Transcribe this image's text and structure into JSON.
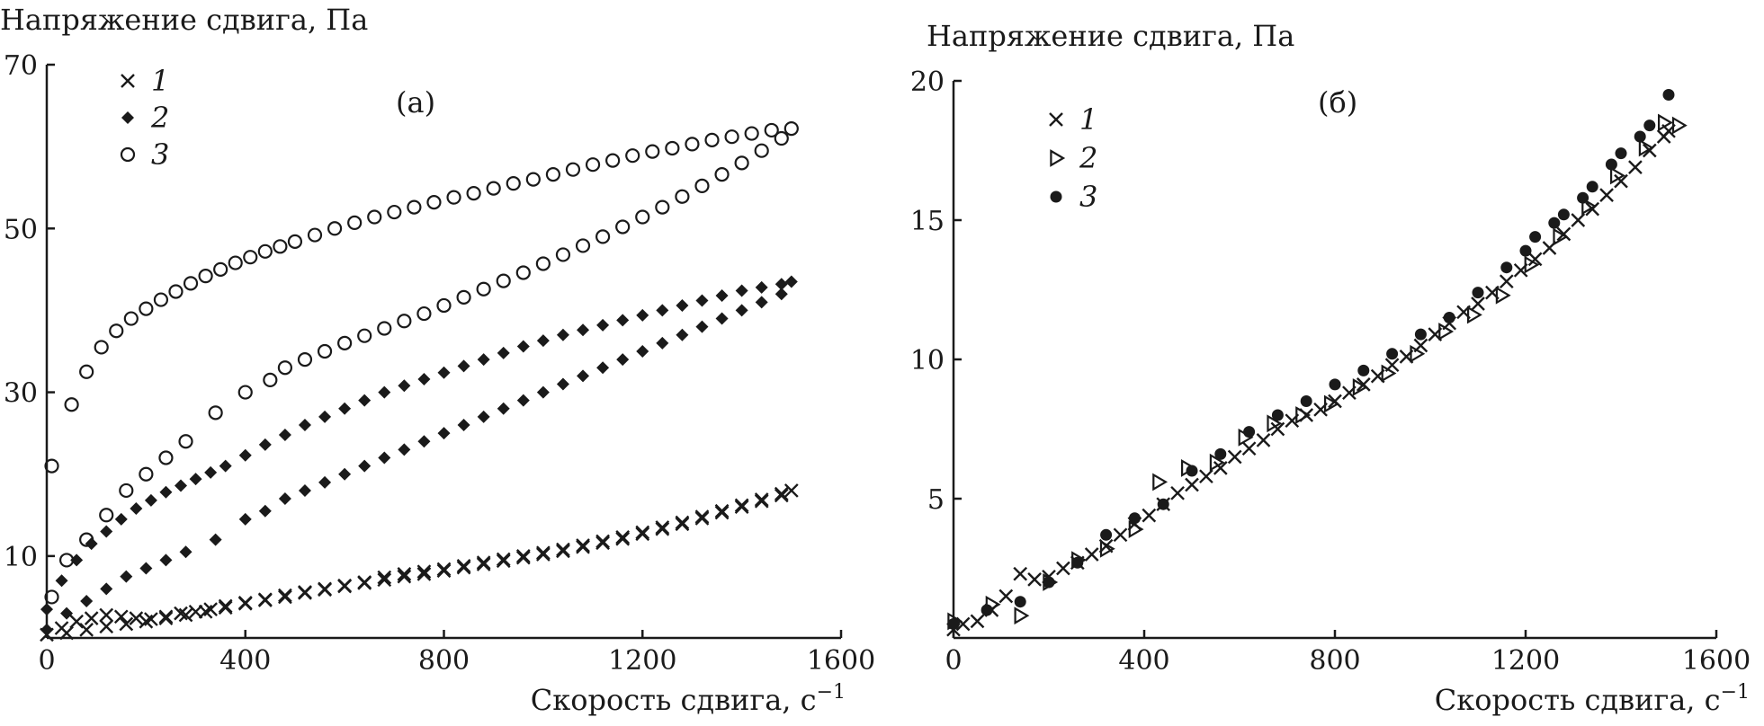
{
  "chart_data": [
    {
      "type": "scatter",
      "panel_label": "(а)",
      "ylabel": "Напряжение сдвига, Па",
      "xlabel": "Скорость сдвига, с",
      "xlabel_sup": "−1",
      "xlim": [
        0,
        1600
      ],
      "ylim": [
        0,
        70
      ],
      "x_ticks": [
        "0",
        "400",
        "800",
        "1200",
        "1600"
      ],
      "y_ticks": [
        "10",
        "30",
        "50",
        "70"
      ],
      "legend_position": "top-left",
      "series": [
        {
          "name": "1",
          "marker": "x",
          "up": {
            "x": [
              0,
              30,
              60,
              90,
              120,
              150,
              180,
              210,
              240,
              270,
              300,
              330,
              360,
              400,
              440,
              480,
              520,
              560,
              600,
              640,
              680,
              720,
              760,
              800,
              840,
              880,
              920,
              960,
              1000,
              1040,
              1080,
              1120,
              1160,
              1200,
              1240,
              1280,
              1320,
              1360,
              1400,
              1440,
              1480,
              1500
            ],
            "y": [
              0.4,
              1.2,
              2.0,
              2.4,
              2.8,
              2.6,
              2.4,
              2.3,
              2.6,
              3.0,
              3.2,
              3.5,
              3.9,
              4.3,
              4.7,
              5.2,
              5.6,
              6.0,
              6.4,
              6.8,
              7.4,
              7.8,
              8.1,
              8.4,
              8.8,
              9.2,
              9.6,
              10.0,
              10.4,
              10.8,
              11.3,
              11.8,
              12.3,
              12.9,
              13.5,
              14.1,
              14.8,
              15.5,
              16.2,
              16.9,
              17.6,
              18.0
            ]
          },
          "down": {
            "x": [
              1480,
              1440,
              1400,
              1360,
              1320,
              1280,
              1240,
              1200,
              1160,
              1120,
              1080,
              1040,
              1000,
              960,
              920,
              880,
              840,
              800,
              760,
              720,
              680,
              640,
              600,
              560,
              520,
              480,
              440,
              400,
              360,
              320,
              280,
              240,
              200,
              160,
              120,
              80,
              40
            ],
            "y": [
              17.4,
              16.7,
              16.0,
              15.3,
              14.6,
              13.9,
              13.3,
              12.7,
              12.1,
              11.6,
              11.1,
              10.6,
              10.2,
              9.8,
              9.4,
              9.0,
              8.6,
              8.2,
              7.8,
              7.5,
              7.1,
              6.7,
              6.3,
              5.9,
              5.5,
              5.0,
              4.6,
              4.2,
              3.7,
              3.2,
              2.8,
              2.4,
              2.0,
              1.7,
              1.4,
              1.0,
              0.6
            ]
          }
        },
        {
          "name": "2",
          "marker": "diamond",
          "up": {
            "x": [
              0,
              30,
              60,
              90,
              120,
              150,
              180,
              210,
              240,
              270,
              300,
              330,
              360,
              400,
              440,
              480,
              520,
              560,
              600,
              640,
              680,
              720,
              760,
              800,
              840,
              880,
              920,
              960,
              1000,
              1040,
              1080,
              1120,
              1160,
              1200,
              1240,
              1280,
              1320,
              1360,
              1400,
              1440,
              1480,
              1500
            ],
            "y": [
              3.5,
              7.0,
              9.5,
              11.5,
              13.0,
              14.5,
              15.8,
              16.8,
              17.8,
              18.6,
              19.4,
              20.2,
              21.0,
              22.3,
              23.6,
              24.8,
              26.0,
              27.0,
              28.0,
              29.0,
              30.0,
              30.8,
              31.6,
              32.4,
              33.2,
              34.0,
              34.8,
              35.6,
              36.3,
              37.0,
              37.6,
              38.2,
              38.8,
              39.4,
              40.0,
              40.6,
              41.2,
              41.8,
              42.4,
              42.8,
              43.2,
              43.5
            ]
          },
          "down": {
            "x": [
              1480,
              1440,
              1400,
              1360,
              1320,
              1280,
              1240,
              1200,
              1160,
              1120,
              1080,
              1040,
              1000,
              960,
              920,
              880,
              840,
              800,
              760,
              720,
              680,
              640,
              600,
              560,
              520,
              480,
              440,
              400,
              340,
              280,
              240,
              200,
              160,
              120,
              80,
              40,
              0
            ],
            "y": [
              42.0,
              41.0,
              40.0,
              39.0,
              38.0,
              37.0,
              36.0,
              35.0,
              34.0,
              33.0,
              32.0,
              31.0,
              30.0,
              29.0,
              28.0,
              27.0,
              26.0,
              25.0,
              24.0,
              23.0,
              22.0,
              21.0,
              20.0,
              19.0,
              18.0,
              17.0,
              15.5,
              14.5,
              12.0,
              10.5,
              9.5,
              8.5,
              7.5,
              6.0,
              4.5,
              3.0,
              1.0
            ]
          }
        },
        {
          "name": "3",
          "marker": "circle",
          "up": {
            "x": [
              10,
              50,
              80,
              110,
              140,
              170,
              200,
              230,
              260,
              290,
              320,
              350,
              380,
              410,
              440,
              470,
              500,
              540,
              580,
              620,
              660,
              700,
              740,
              780,
              820,
              860,
              900,
              940,
              980,
              1020,
              1060,
              1100,
              1140,
              1180,
              1220,
              1260,
              1300,
              1340,
              1380,
              1420,
              1460,
              1500
            ],
            "y": [
              21.0,
              28.5,
              32.5,
              35.5,
              37.5,
              39.0,
              40.2,
              41.3,
              42.3,
              43.3,
              44.2,
              45.0,
              45.8,
              46.5,
              47.2,
              47.8,
              48.4,
              49.2,
              50.0,
              50.7,
              51.4,
              52.0,
              52.6,
              53.2,
              53.8,
              54.3,
              54.9,
              55.5,
              56.0,
              56.6,
              57.2,
              57.8,
              58.3,
              58.9,
              59.4,
              59.8,
              60.3,
              60.8,
              61.2,
              61.6,
              62.0,
              62.2
            ]
          },
          "down": {
            "x": [
              1480,
              1440,
              1400,
              1360,
              1320,
              1280,
              1240,
              1200,
              1160,
              1120,
              1080,
              1040,
              1000,
              960,
              920,
              880,
              840,
              800,
              760,
              720,
              680,
              640,
              600,
              560,
              520,
              480,
              450,
              400,
              340,
              280,
              240,
              200,
              160,
              120,
              80,
              40,
              10
            ],
            "y": [
              61.0,
              59.5,
              58.0,
              56.6,
              55.2,
              53.9,
              52.6,
              51.4,
              50.2,
              49.0,
              47.9,
              46.8,
              45.7,
              44.6,
              43.6,
              42.6,
              41.6,
              40.6,
              39.6,
              38.7,
              37.8,
              36.9,
              36.0,
              35.0,
              34.0,
              33.0,
              31.5,
              30.0,
              27.5,
              24.0,
              22.0,
              20.0,
              18.0,
              15.0,
              12.0,
              9.5,
              5.0
            ]
          }
        }
      ]
    },
    {
      "type": "scatter",
      "panel_label": "(б)",
      "ylabel": "Напряжение сдвига, Па",
      "xlabel": "Скорость сдвига, с",
      "xlabel_sup": "−1",
      "xlim": [
        0,
        1600
      ],
      "ylim": [
        0,
        20
      ],
      "x_ticks": [
        "0",
        "400",
        "800",
        "1200",
        "1600"
      ],
      "y_ticks": [
        "5",
        "10",
        "15",
        "20"
      ],
      "legend_position": "top-left",
      "series": [
        {
          "name": "1",
          "marker": "x",
          "x": [
            0,
            20,
            50,
            80,
            110,
            140,
            170,
            200,
            230,
            260,
            290,
            320,
            350,
            380,
            410,
            440,
            470,
            500,
            530,
            560,
            590,
            620,
            650,
            680,
            710,
            740,
            770,
            800,
            830,
            860,
            890,
            920,
            950,
            980,
            1010,
            1040,
            1070,
            1100,
            1130,
            1160,
            1190,
            1220,
            1250,
            1280,
            1310,
            1340,
            1370,
            1400,
            1430,
            1460,
            1490,
            1500
          ],
          "y": [
            0.3,
            0.5,
            0.6,
            1.0,
            1.5,
            2.3,
            2.1,
            2.2,
            2.5,
            2.7,
            3.0,
            3.3,
            3.7,
            4.1,
            4.4,
            4.8,
            5.2,
            5.5,
            5.8,
            6.1,
            6.5,
            6.8,
            7.1,
            7.5,
            7.8,
            8.0,
            8.2,
            8.5,
            8.8,
            9.1,
            9.4,
            9.8,
            10.1,
            10.5,
            10.9,
            11.3,
            11.7,
            12.0,
            12.4,
            12.8,
            13.2,
            13.6,
            14.0,
            14.5,
            15.0,
            15.4,
            15.9,
            16.4,
            16.9,
            17.5,
            18.0,
            18.2
          ]
        },
        {
          "name": "2",
          "marker": "triangle-right",
          "x": [
            0,
            80,
            140,
            200,
            260,
            320,
            380,
            430,
            490,
            550,
            610,
            670,
            730,
            790,
            850,
            910,
            970,
            1030,
            1090,
            1150,
            1210,
            1270,
            1330,
            1390,
            1450,
            1490,
            1520
          ],
          "y": [
            0.6,
            1.2,
            0.8,
            2.0,
            2.8,
            3.2,
            3.9,
            5.6,
            6.1,
            6.3,
            7.2,
            7.7,
            8.0,
            8.4,
            9.0,
            9.5,
            10.2,
            11.0,
            11.6,
            12.3,
            13.4,
            14.4,
            15.5,
            16.6,
            17.6,
            18.5,
            18.4
          ]
        },
        {
          "name": "3",
          "marker": "dot",
          "x": [
            0,
            70,
            140,
            200,
            260,
            320,
            380,
            440,
            500,
            560,
            620,
            680,
            740,
            800,
            860,
            920,
            980,
            1040,
            1100,
            1160,
            1220,
            1280,
            1340,
            1400,
            1460,
            1500,
            1200,
            1260,
            1320,
            1380,
            1440
          ],
          "y": [
            0.5,
            1.0,
            1.3,
            2.0,
            2.7,
            3.7,
            4.3,
            4.8,
            6.0,
            6.6,
            7.4,
            8.0,
            8.5,
            9.1,
            9.6,
            10.2,
            10.9,
            11.5,
            12.4,
            13.3,
            14.4,
            15.2,
            16.2,
            17.4,
            18.4,
            19.5,
            13.9,
            14.9,
            15.8,
            17.0,
            18.0
          ]
        }
      ]
    }
  ]
}
